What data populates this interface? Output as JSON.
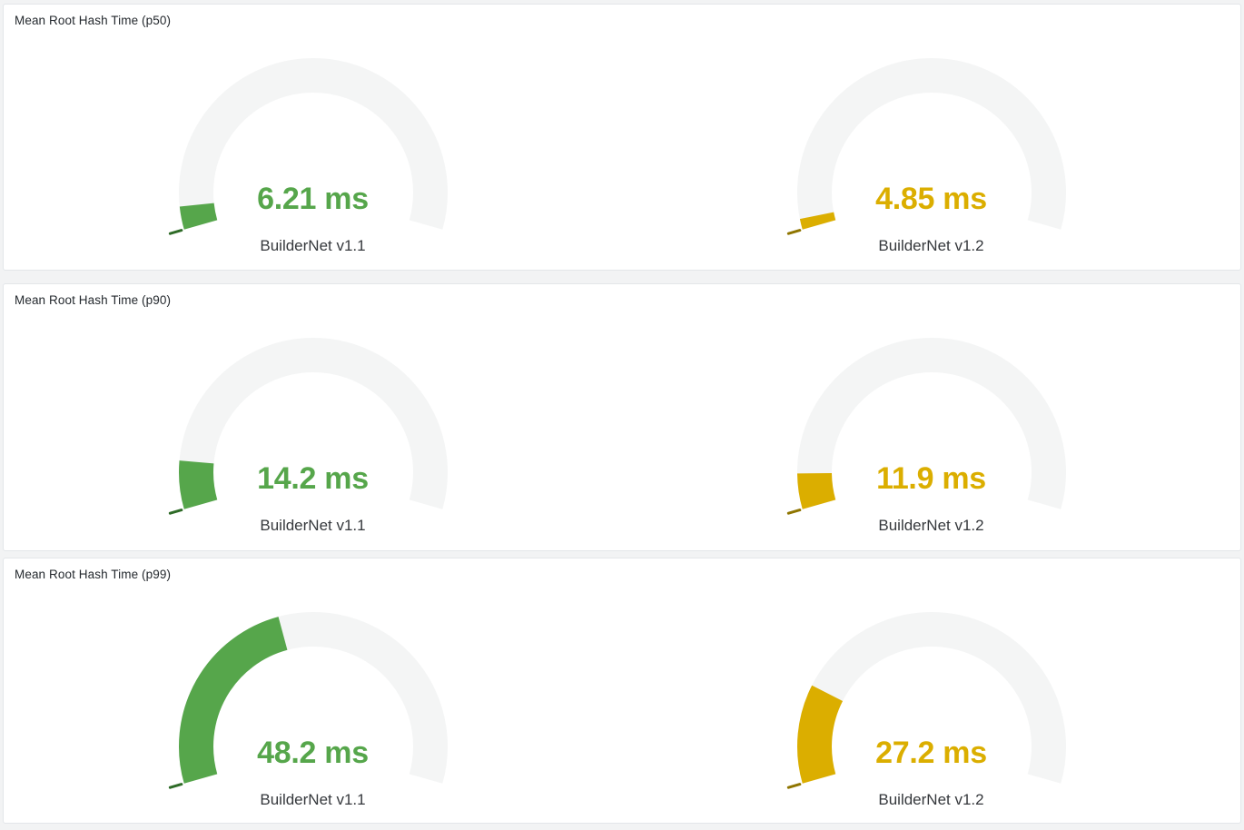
{
  "page": {
    "background_color": "#F2F3F4",
    "panel_background": "#FFFFFF",
    "panel_border_color": "#E3E6E9",
    "title_color": "#24292E",
    "label_color": "#35383C"
  },
  "chart_data": [
    {
      "type": "gauge",
      "title": "Mean Root Hash Time (p50)",
      "unit": "ms",
      "min": 0,
      "series": [
        {
          "name": "BuilderNet v1.1",
          "value": 6.21,
          "display": "6.21 ms",
          "color": "#56A64B",
          "tick_color": "#2E6B27",
          "fill_fraction": 0.047
        },
        {
          "name": "BuilderNet v1.2",
          "value": 4.85,
          "display": "4.85 ms",
          "color": "#DBAE00",
          "tick_color": "#8F7500",
          "fill_fraction": 0.022
        }
      ],
      "layout": {
        "arc_start_deg": 196,
        "arc_end_deg": -16,
        "track_color": "#F4F5F5",
        "legend": "none",
        "grid": false
      }
    },
    {
      "type": "gauge",
      "title": "Mean Root Hash Time (p90)",
      "unit": "ms",
      "min": 0,
      "series": [
        {
          "name": "BuilderNet v1.1",
          "value": 14.2,
          "display": "14.2 ms",
          "color": "#56A64B",
          "tick_color": "#2E6B27",
          "fill_fraction": 0.099
        },
        {
          "name": "BuilderNet v1.2",
          "value": 11.9,
          "display": "11.9 ms",
          "color": "#DBAE00",
          "tick_color": "#8F7500",
          "fill_fraction": 0.073
        }
      ],
      "layout": {
        "arc_start_deg": 196,
        "arc_end_deg": -16,
        "track_color": "#F4F5F5",
        "legend": "none",
        "grid": false
      }
    },
    {
      "type": "gauge",
      "title": "Mean Root Hash Time (p99)",
      "unit": "ms",
      "min": 0,
      "series": [
        {
          "name": "BuilderNet v1.1",
          "value": 48.2,
          "display": "48.2 ms",
          "color": "#56A64B",
          "tick_color": "#2E6B27",
          "fill_fraction": 0.429
        },
        {
          "name": "BuilderNet v1.2",
          "value": 27.2,
          "display": "27.2 ms",
          "color": "#DBAE00",
          "tick_color": "#8F7500",
          "fill_fraction": 0.203
        }
      ],
      "layout": {
        "arc_start_deg": 196,
        "arc_end_deg": -16,
        "track_color": "#F4F5F5",
        "legend": "none",
        "grid": false
      }
    }
  ]
}
